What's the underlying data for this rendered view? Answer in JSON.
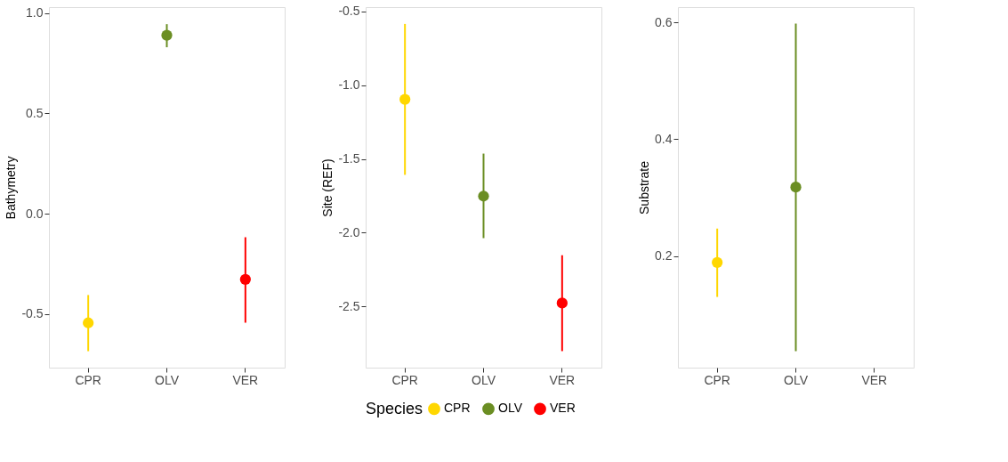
{
  "chart_data": [
    {
      "type": "scatter",
      "ylabel": "Bathymetry",
      "categories": [
        "CPR",
        "OLV",
        "VER"
      ],
      "ylim": [
        -0.767,
        1.03
      ],
      "yticks": [
        -0.5,
        {
          "value": 0,
          "label": "0.0"
        },
        0.5,
        {
          "value": 1,
          "label": "1.0"
        }
      ],
      "marker": "circle",
      "series": [
        {
          "color": "#ffd700",
          "values": [
            -0.544,
            null,
            null
          ],
          "errors": [
            [
              -0.685,
              -0.405
            ],
            null,
            null
          ]
        },
        {
          "color": "#6b8e23",
          "values": [
            null,
            0.89,
            null
          ],
          "errors": [
            null,
            [
              0.83,
              0.945
            ],
            null
          ]
        },
        {
          "color": "#ff0000",
          "values": [
            null,
            null,
            -0.327
          ],
          "errors": [
            null,
            null,
            [
              -0.543,
              -0.117
            ]
          ]
        }
      ]
    },
    {
      "type": "scatter",
      "ylabel": "Site (REF)",
      "legend_title": "Species",
      "categories": [
        "CPR",
        "OLV",
        "VER"
      ],
      "ylim": [
        -2.915,
        -0.471
      ],
      "yticks": [
        -2.5,
        {
          "value": -2,
          "label": "-2.0"
        },
        -1.5,
        {
          "value": -1,
          "label": "-1.0"
        },
        -0.5
      ],
      "marker": "circle",
      "legend": "bottom",
      "series": [
        {
          "name": "CPR",
          "color": "#ffd700",
          "values": [
            -1.096,
            null,
            null
          ],
          "errors": [
            [
              -1.608,
              -0.585
            ],
            null,
            null
          ]
        },
        {
          "name": "OLV",
          "color": "#6b8e23",
          "values": [
            null,
            -1.752,
            null
          ],
          "errors": [
            null,
            [
              -2.037,
              -1.464
            ],
            null
          ]
        },
        {
          "name": "VER",
          "color": "#ff0000",
          "values": [
            null,
            null,
            -2.477
          ],
          "errors": [
            null,
            null,
            [
              -2.803,
              -2.153
            ]
          ]
        }
      ]
    },
    {
      "type": "scatter",
      "ylabel": "Substrate",
      "categories": [
        "CPR",
        "OLV",
        "VER"
      ],
      "ylim": [
        0.009,
        0.626
      ],
      "yticks": [
        0.2,
        0.4,
        0.6
      ],
      "marker": "circle",
      "series": [
        {
          "color": "#ffd700",
          "values": [
            0.189,
            null,
            null
          ],
          "errors": [
            [
              0.13,
              0.247
            ],
            null,
            null
          ]
        },
        {
          "color": "#6b8e23",
          "values": [
            null,
            0.318,
            null
          ],
          "errors": [
            null,
            [
              0.037,
              0.598
            ],
            null
          ]
        }
      ]
    }
  ]
}
